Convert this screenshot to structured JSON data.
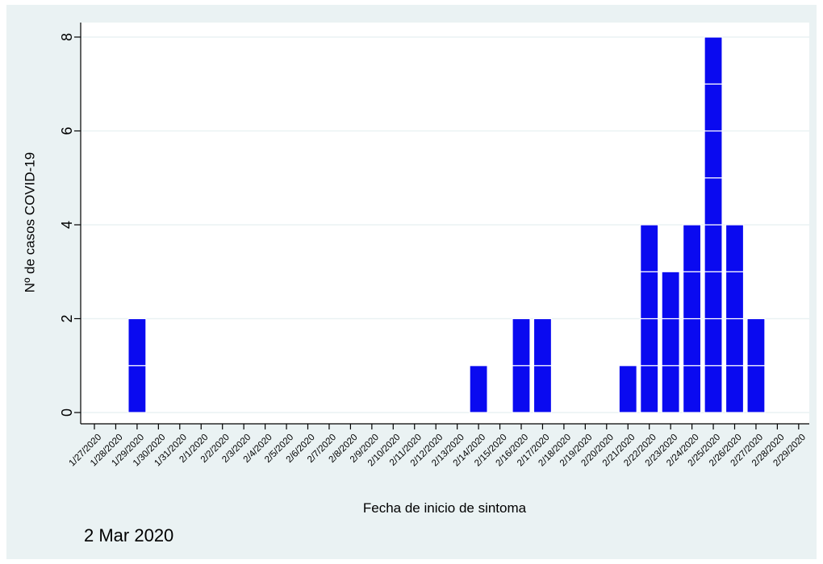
{
  "chart_data": {
    "type": "bar",
    "stacked_units": true,
    "categories": [
      "1/27/2020",
      "1/28/2020",
      "1/29/2020",
      "1/30/2020",
      "1/31/2020",
      "2/1/2020",
      "2/2/2020",
      "2/3/2020",
      "2/4/2020",
      "2/5/2020",
      "2/6/2020",
      "2/7/2020",
      "2/8/2020",
      "2/9/2020",
      "2/10/2020",
      "2/11/2020",
      "2/12/2020",
      "2/13/2020",
      "2/14/2020",
      "2/15/2020",
      "2/16/2020",
      "2/17/2020",
      "2/18/2020",
      "2/19/2020",
      "2/20/2020",
      "2/21/2020",
      "2/22/2020",
      "2/23/2020",
      "2/24/2020",
      "2/25/2020",
      "2/26/2020",
      "2/27/2020",
      "2/28/2020",
      "2/29/2020"
    ],
    "values": [
      0,
      0,
      2,
      0,
      0,
      0,
      0,
      0,
      0,
      0,
      0,
      0,
      0,
      0,
      0,
      0,
      0,
      0,
      1,
      0,
      2,
      2,
      0,
      0,
      0,
      1,
      4,
      3,
      4,
      8,
      4,
      2,
      0,
      0
    ],
    "ylabel": "Nº de casos COVID-19",
    "xlabel": "Fecha de inicio de sintoma",
    "yticks": [
      0,
      2,
      4,
      6,
      8
    ],
    "ylim": [
      0,
      8
    ],
    "grid": true,
    "bar_color": "#0a0af0",
    "background_color": "#eaf2f3",
    "plot_background": "#ffffff"
  },
  "footnote": "2 Mar 2020"
}
